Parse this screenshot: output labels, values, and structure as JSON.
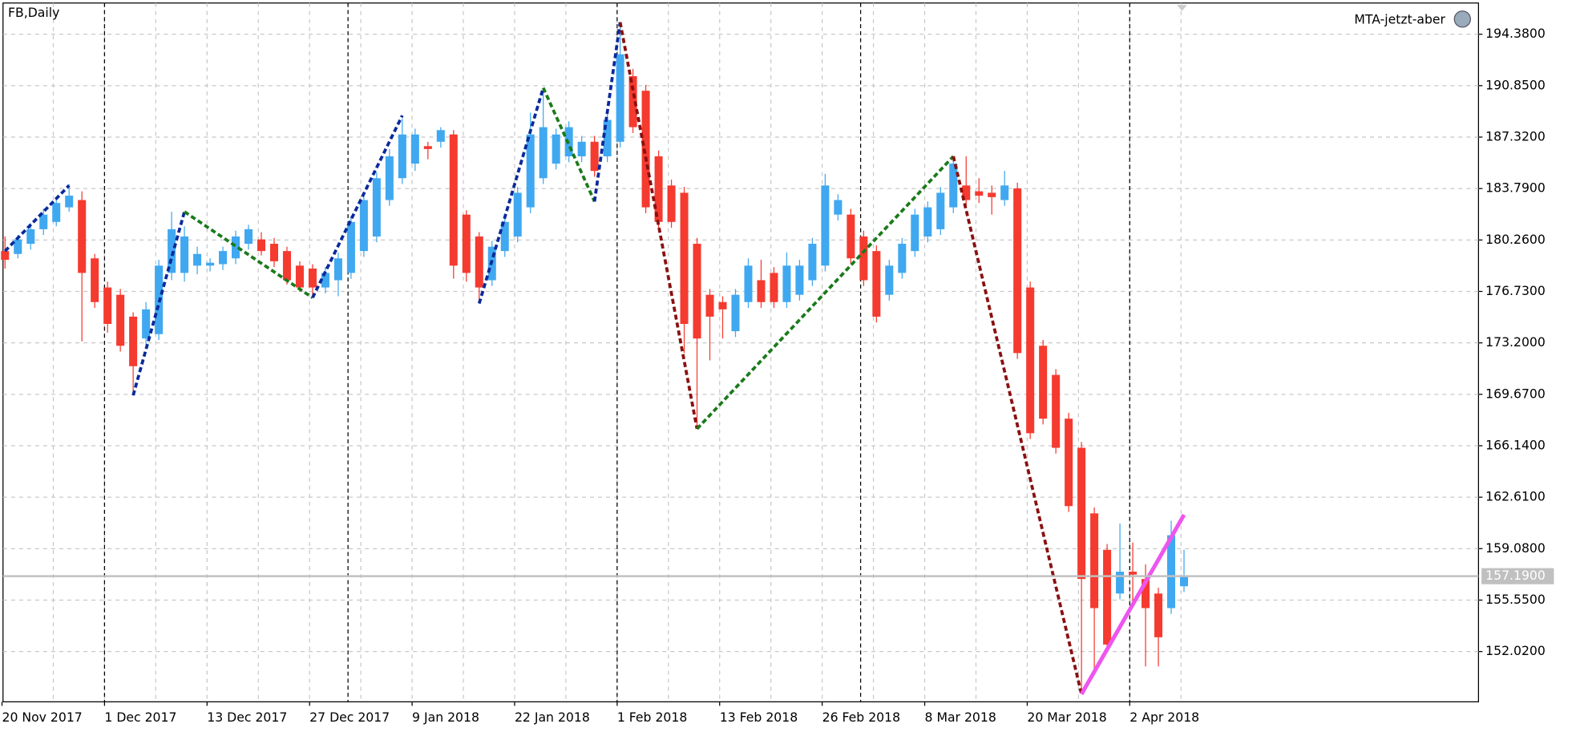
{
  "chart_data": {
    "type": "candlestick",
    "title": "FB,Daily",
    "indicator_label": "MTA-jetzt-aber",
    "categories": [
      "20 Nov 2017",
      null,
      null,
      null,
      null,
      null,
      null,
      null,
      "1 Dec 2017",
      null,
      null,
      null,
      null,
      null,
      null,
      null,
      "13 Dec 2017",
      null,
      null,
      null,
      null,
      null,
      null,
      null,
      "27 Dec 2017",
      null,
      null,
      null,
      null,
      null,
      null,
      null,
      "9 Jan 2018",
      null,
      null,
      null,
      null,
      null,
      null,
      null,
      "22 Jan 2018",
      null,
      null,
      null,
      null,
      null,
      null,
      null,
      "1 Feb 2018",
      null,
      null,
      null,
      null,
      null,
      null,
      null,
      "13 Feb 2018",
      null,
      null,
      null,
      null,
      null,
      null,
      null,
      "26 Feb 2018",
      null,
      null,
      null,
      null,
      null,
      null,
      null,
      "8 Mar 2018",
      null,
      null,
      null,
      null,
      null,
      null,
      null,
      "20 Mar 2018",
      null,
      null,
      null,
      null,
      null,
      null,
      null,
      "2 Apr 2018",
      null,
      null,
      null,
      null
    ],
    "open": [
      179.5,
      179.3,
      180.0,
      181.0,
      181.5,
      182.5,
      183.0,
      179.0,
      177.0,
      176.5,
      175.0,
      173.5,
      173.8,
      178.0,
      178.0,
      178.5,
      178.5,
      178.6,
      179.0,
      180.0,
      180.3,
      180.0,
      179.5,
      178.5,
      178.3,
      177.0,
      177.5,
      178.0,
      179.5,
      180.5,
      183.0,
      184.5,
      185.5,
      186.7,
      187.0,
      187.5,
      182.0,
      180.5,
      177.5,
      179.5,
      180.5,
      182.5,
      184.5,
      185.5,
      186.0,
      186.0,
      187.0,
      186.0,
      187.0,
      191.5,
      190.5,
      186.0,
      184.0,
      183.5,
      180.0,
      176.5,
      176.0,
      174.0,
      176.0,
      177.5,
      178.0,
      176.0,
      176.5,
      177.5,
      178.5,
      182.0,
      182.0,
      180.5,
      179.5,
      176.5,
      178.0,
      179.5,
      180.5,
      181.0,
      182.5,
      184.0,
      183.6,
      183.5,
      183.0,
      183.8,
      177.0,
      173.0,
      171.0,
      168.0,
      166.0,
      161.5,
      159.0,
      156.0,
      157.5,
      157.0,
      156.0,
      155.0,
      156.5
    ],
    "high": [
      180.5,
      180.6,
      181.4,
      182.4,
      183.2,
      184.1,
      183.6,
      179.3,
      177.4,
      176.9,
      175.3,
      176.0,
      178.9,
      182.2,
      181.2,
      179.8,
      179.0,
      179.8,
      180.9,
      181.3,
      180.8,
      180.4,
      179.8,
      178.8,
      178.6,
      178.4,
      179.4,
      181.9,
      183.4,
      184.9,
      186.5,
      188.6,
      187.9,
      187.0,
      188.0,
      187.8,
      182.3,
      180.8,
      180.2,
      181.9,
      183.9,
      189.0,
      190.7,
      187.9,
      188.4,
      187.4,
      187.4,
      188.9,
      195.2,
      192.0,
      190.9,
      186.4,
      184.4,
      183.9,
      180.4,
      176.9,
      176.4,
      176.9,
      179.0,
      178.9,
      178.4,
      179.4,
      178.9,
      180.4,
      184.8,
      183.4,
      182.4,
      180.9,
      179.9,
      178.9,
      180.4,
      182.4,
      182.9,
      183.9,
      186.0,
      186.0,
      184.5,
      184.0,
      185.0,
      184.2,
      177.4,
      173.4,
      171.4,
      168.4,
      166.4,
      161.9,
      159.4,
      160.8,
      159.5,
      158.0,
      156.4,
      161.0,
      159.0
    ],
    "low": [
      178.3,
      179.0,
      179.6,
      180.6,
      181.2,
      182.2,
      173.3,
      175.6,
      173.9,
      172.6,
      169.6,
      173.0,
      173.4,
      177.5,
      177.4,
      177.9,
      178.1,
      178.2,
      178.6,
      179.6,
      179.2,
      178.4,
      177.2,
      176.7,
      176.4,
      176.6,
      176.4,
      177.6,
      179.1,
      180.1,
      182.6,
      184.1,
      185.0,
      185.8,
      186.6,
      177.6,
      177.4,
      175.9,
      177.1,
      179.1,
      180.1,
      182.1,
      184.1,
      185.1,
      185.6,
      185.6,
      184.6,
      185.6,
      186.6,
      187.6,
      182.1,
      181.1,
      181.1,
      172.5,
      167.3,
      172.0,
      173.5,
      173.6,
      175.6,
      175.6,
      175.6,
      175.6,
      176.1,
      177.1,
      178.1,
      181.6,
      178.6,
      177.1,
      174.6,
      176.1,
      177.6,
      179.1,
      180.1,
      180.6,
      182.1,
      182.6,
      182.8,
      182.0,
      182.6,
      172.1,
      166.6,
      167.6,
      165.6,
      161.6,
      149.2,
      150.6,
      152.1,
      155.6,
      155.0,
      151.0,
      151.0,
      154.6,
      156.1
    ],
    "close": [
      178.9,
      180.3,
      181.0,
      182.0,
      182.8,
      183.3,
      178.0,
      176.0,
      174.5,
      173.0,
      171.6,
      175.5,
      178.5,
      181.0,
      180.5,
      179.3,
      178.7,
      179.5,
      180.5,
      181.0,
      179.5,
      178.8,
      177.5,
      177.0,
      177.0,
      178.0,
      179.0,
      181.5,
      183.0,
      184.5,
      186.0,
      187.5,
      187.5,
      186.5,
      187.8,
      178.5,
      178.0,
      177.0,
      179.8,
      181.5,
      183.5,
      187.5,
      188.0,
      187.5,
      188.0,
      187.0,
      185.0,
      188.5,
      193.0,
      188.0,
      182.5,
      181.5,
      181.5,
      174.5,
      173.5,
      175.0,
      175.5,
      176.5,
      178.5,
      176.0,
      176.0,
      178.5,
      178.5,
      180.0,
      184.0,
      183.0,
      179.0,
      177.5,
      175.0,
      178.5,
      180.0,
      182.0,
      182.5,
      183.5,
      185.5,
      183.0,
      183.3,
      183.2,
      184.0,
      172.5,
      167.0,
      168.0,
      166.0,
      162.0,
      157.0,
      155.0,
      152.5,
      157.5,
      157.3,
      155.0,
      153.0,
      160.0,
      157.2
    ],
    "up_color": "#40a8f0",
    "down_color": "#f53a2f",
    "ylim": [
      148.57,
      196.52
    ],
    "yticks": [
      {
        "value": 194.38,
        "label": "194.3800"
      },
      {
        "value": 190.85,
        "label": "190.8500"
      },
      {
        "value": 187.32,
        "label": "187.3200"
      },
      {
        "value": 183.79,
        "label": "183.7900"
      },
      {
        "value": 180.26,
        "label": "180.2600"
      },
      {
        "value": 176.73,
        "label": "176.7300"
      },
      {
        "value": 173.2,
        "label": "173.2000"
      },
      {
        "value": 169.67,
        "label": "169.6700"
      },
      {
        "value": 166.14,
        "label": "166.1400"
      },
      {
        "value": 162.61,
        "label": "162.6100"
      },
      {
        "value": 159.08,
        "label": "159.0800"
      },
      {
        "value": 155.55,
        "label": "155.5500"
      },
      {
        "value": 152.02,
        "label": "152.0200"
      }
    ],
    "current_price": {
      "value": 157.19,
      "label": "157.1900"
    },
    "separators": [
      8,
      27,
      48,
      67,
      88
    ],
    "grid": true,
    "overlays": [
      {
        "color": "#0a2a9a",
        "x": [
          0,
          5
        ],
        "y": [
          179.5,
          184.0
        ]
      },
      {
        "color": "#0a2a9a",
        "x": [
          10,
          14
        ],
        "y": [
          169.6,
          182.2
        ]
      },
      {
        "color": "#1a7a1a",
        "x": [
          14,
          24
        ],
        "y": [
          182.2,
          176.3
        ]
      },
      {
        "color": "#0a2a9a",
        "x": [
          24,
          31
        ],
        "y": [
          176.3,
          188.8
        ]
      },
      {
        "color": "#0a2a9a",
        "x": [
          37,
          42
        ],
        "y": [
          175.9,
          190.7
        ]
      },
      {
        "color": "#1a7a1a",
        "x": [
          42,
          46
        ],
        "y": [
          190.7,
          182.9
        ]
      },
      {
        "color": "#0a2a9a",
        "x": [
          46,
          48
        ],
        "y": [
          182.9,
          195.2
        ]
      },
      {
        "color": "#8a1010",
        "x": [
          48,
          54
        ],
        "y": [
          195.2,
          167.3
        ]
      },
      {
        "color": "#1a7a1a",
        "x": [
          54,
          74
        ],
        "y": [
          167.3,
          186.0
        ]
      },
      {
        "color": "#8a1010",
        "x": [
          74,
          84
        ],
        "y": [
          186.0,
          149.1
        ]
      },
      {
        "color": "#ee55ee",
        "x": [
          84,
          92
        ],
        "y": [
          149.1,
          161.4
        ]
      }
    ]
  }
}
